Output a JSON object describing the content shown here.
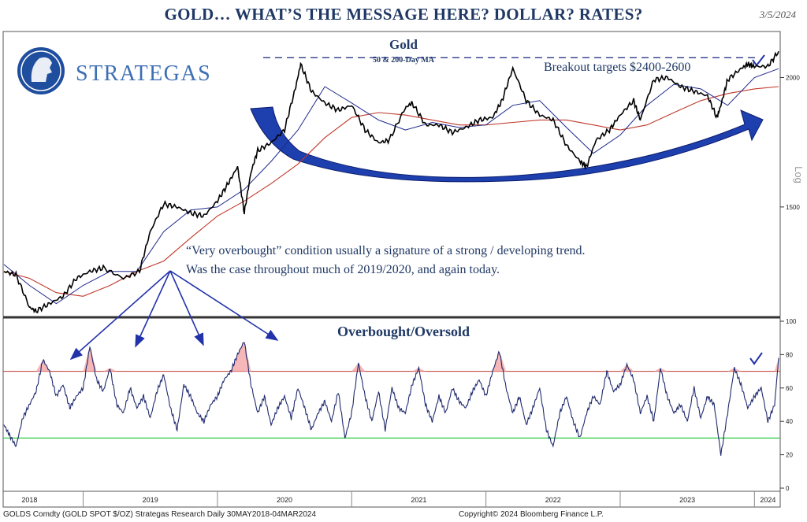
{
  "header": {
    "title": "GOLD… WHAT’S THE MESSAGE HERE? DOLLAR? RATES?",
    "date": "3/5/2024"
  },
  "logo": {
    "text": "STRATEGAS"
  },
  "footer": {
    "source_left": "GOLDS Comdty (GOLD SPOT $/OZ) Strategas Research  Daily 30MAY2018-04MAR2024",
    "source_right": "Copyright© 2024 Bloomberg Finance L.P."
  },
  "annotations": {
    "breakout": "Breakout targets $2400-2600",
    "overbought_line1": "“Very overbought” condition usually a signature of a strong / developing trend.",
    "overbought_line2": "Was the case throughout much of 2019/2020, and again today."
  },
  "colors": {
    "price": "#000000",
    "ma50": "#1f2a8a",
    "ma200": "#c0392b",
    "rsi": "#1f2a6e",
    "overbought_line": "#c0392b",
    "oversold_line": "#2ecc40",
    "arrow": "#2233aa",
    "title": "#1f3864"
  },
  "chart_data": [
    {
      "type": "line",
      "title": "Gold",
      "subtitle": "50 & 200-Day MA",
      "scale": "log",
      "scale_label": "Log",
      "y_ticks": [
        1500,
        2000
      ],
      "ylim": [
        1180,
        2200
      ],
      "x_ticks": [
        "2018",
        "2019",
        "2020",
        "2021",
        "2022",
        "2023",
        "2024"
      ],
      "x_tick_positions": [
        2018.6,
        2019.5,
        2020.5,
        2021.5,
        2022.5,
        2023.5,
        2024.1
      ],
      "xlim": [
        2018.41,
        2024.18
      ],
      "breakout_level": 2090,
      "series": [
        {
          "key": "price",
          "x": [
            2018.41,
            2018.5,
            2018.6,
            2018.65,
            2018.75,
            2018.85,
            2018.95,
            2019.05,
            2019.15,
            2019.3,
            2019.42,
            2019.5,
            2019.6,
            2019.7,
            2019.8,
            2019.9,
            2020.0,
            2020.08,
            2020.15,
            2020.2,
            2020.25,
            2020.3,
            2020.4,
            2020.5,
            2020.58,
            2020.62,
            2020.7,
            2020.8,
            2020.9,
            2021.0,
            2021.1,
            2021.2,
            2021.28,
            2021.4,
            2021.45,
            2021.55,
            2021.65,
            2021.75,
            2021.85,
            2021.95,
            2022.05,
            2022.12,
            2022.2,
            2022.3,
            2022.4,
            2022.5,
            2022.6,
            2022.7,
            2022.75,
            2022.82,
            2022.92,
            2023.0,
            2023.1,
            2023.15,
            2023.25,
            2023.35,
            2023.45,
            2023.55,
            2023.65,
            2023.72,
            2023.75,
            2023.8,
            2023.9,
            2023.95,
            2024.0,
            2024.1,
            2024.18
          ],
          "values": [
            1300,
            1290,
            1200,
            1190,
            1210,
            1230,
            1280,
            1300,
            1310,
            1280,
            1300,
            1420,
            1510,
            1500,
            1480,
            1470,
            1520,
            1580,
            1640,
            1480,
            1620,
            1700,
            1730,
            1780,
            1950,
            2060,
            1940,
            1890,
            1860,
            1880,
            1780,
            1730,
            1740,
            1870,
            1890,
            1800,
            1800,
            1770,
            1790,
            1820,
            1830,
            1900,
            2040,
            1900,
            1840,
            1820,
            1720,
            1660,
            1640,
            1740,
            1780,
            1840,
            1900,
            1820,
            1990,
            2000,
            1960,
            1940,
            1920,
            1830,
            1880,
            1990,
            2040,
            2060,
            2050,
            2050,
            2120
          ]
        },
        {
          "key": "ma50",
          "x": [
            2018.41,
            2018.6,
            2018.8,
            2019.0,
            2019.2,
            2019.4,
            2019.6,
            2019.8,
            2020.0,
            2020.2,
            2020.4,
            2020.6,
            2020.8,
            2021.0,
            2021.2,
            2021.4,
            2021.6,
            2021.8,
            2022.0,
            2022.2,
            2022.4,
            2022.6,
            2022.8,
            2023.0,
            2023.2,
            2023.4,
            2023.6,
            2023.8,
            2024.0,
            2024.18
          ],
          "values": [
            1320,
            1260,
            1210,
            1260,
            1300,
            1300,
            1420,
            1490,
            1500,
            1560,
            1660,
            1780,
            1960,
            1890,
            1820,
            1780,
            1810,
            1790,
            1800,
            1880,
            1900,
            1790,
            1690,
            1760,
            1880,
            1970,
            1950,
            1880,
            2000,
            2040
          ]
        },
        {
          "key": "ma200",
          "x": [
            2018.41,
            2018.6,
            2018.8,
            2019.0,
            2019.2,
            2019.4,
            2019.6,
            2019.8,
            2020.0,
            2020.2,
            2020.4,
            2020.6,
            2020.8,
            2021.0,
            2021.2,
            2021.4,
            2021.6,
            2021.8,
            2022.0,
            2022.2,
            2022.4,
            2022.6,
            2022.8,
            2023.0,
            2023.2,
            2023.4,
            2023.6,
            2023.8,
            2024.0,
            2024.18
          ],
          "values": [
            1300,
            1280,
            1240,
            1230,
            1260,
            1300,
            1330,
            1400,
            1470,
            1520,
            1580,
            1650,
            1750,
            1830,
            1850,
            1840,
            1820,
            1800,
            1800,
            1810,
            1820,
            1820,
            1800,
            1780,
            1800,
            1850,
            1900,
            1930,
            1950,
            1960
          ]
        }
      ]
    },
    {
      "type": "line",
      "title": "Overbought/Oversold",
      "y_ticks": [
        0,
        20,
        40,
        60,
        80,
        100
      ],
      "ylim": [
        0,
        100
      ],
      "overbought": 70,
      "oversold": 30,
      "xlim": [
        2018.41,
        2024.18
      ],
      "series": [
        {
          "key": "rsi",
          "x": [
            2018.41,
            2018.45,
            2018.5,
            2018.55,
            2018.6,
            2018.65,
            2018.7,
            2018.75,
            2018.8,
            2018.85,
            2018.9,
            2018.95,
            2019.0,
            2019.05,
            2019.1,
            2019.15,
            2019.2,
            2019.25,
            2019.3,
            2019.35,
            2019.4,
            2019.45,
            2019.5,
            2019.55,
            2019.6,
            2019.65,
            2019.7,
            2019.75,
            2019.8,
            2019.85,
            2019.9,
            2019.95,
            2020.0,
            2020.05,
            2020.1,
            2020.15,
            2020.2,
            2020.25,
            2020.3,
            2020.35,
            2020.4,
            2020.45,
            2020.5,
            2020.55,
            2020.6,
            2020.65,
            2020.7,
            2020.75,
            2020.8,
            2020.85,
            2020.9,
            2020.95,
            2021.0,
            2021.05,
            2021.1,
            2021.15,
            2021.2,
            2021.25,
            2021.3,
            2021.35,
            2021.4,
            2021.45,
            2021.5,
            2021.55,
            2021.6,
            2021.65,
            2021.7,
            2021.75,
            2021.8,
            2021.85,
            2021.9,
            2021.95,
            2022.0,
            2022.05,
            2022.1,
            2022.15,
            2022.2,
            2022.25,
            2022.3,
            2022.35,
            2022.4,
            2022.45,
            2022.5,
            2022.55,
            2022.6,
            2022.65,
            2022.7,
            2022.75,
            2022.8,
            2022.85,
            2022.9,
            2022.95,
            2023.0,
            2023.05,
            2023.1,
            2023.15,
            2023.2,
            2023.25,
            2023.3,
            2023.35,
            2023.4,
            2023.45,
            2023.5,
            2023.55,
            2023.6,
            2023.65,
            2023.7,
            2023.75,
            2023.8,
            2023.85,
            2023.9,
            2023.95,
            2024.0,
            2024.05,
            2024.1,
            2024.15,
            2024.18
          ],
          "values": [
            38,
            32,
            25,
            42,
            50,
            58,
            77,
            70,
            55,
            62,
            48,
            55,
            60,
            85,
            65,
            58,
            72,
            50,
            45,
            60,
            48,
            55,
            42,
            58,
            68,
            48,
            35,
            62,
            55,
            45,
            40,
            50,
            55,
            65,
            70,
            80,
            88,
            62,
            45,
            55,
            38,
            48,
            55,
            42,
            60,
            48,
            35,
            45,
            52,
            40,
            58,
            30,
            45,
            75,
            55,
            40,
            58,
            35,
            60,
            48,
            45,
            62,
            72,
            50,
            40,
            55,
            45,
            60,
            52,
            48,
            58,
            65,
            55,
            70,
            82,
            60,
            45,
            55,
            38,
            48,
            60,
            35,
            25,
            45,
            55,
            40,
            30,
            45,
            55,
            50,
            70,
            58,
            62,
            74,
            65,
            45,
            55,
            40,
            72,
            55,
            45,
            50,
            40,
            60,
            42,
            55,
            50,
            20,
            45,
            72,
            62,
            48,
            55,
            60,
            40,
            50,
            78
          ]
        }
      ]
    }
  ]
}
